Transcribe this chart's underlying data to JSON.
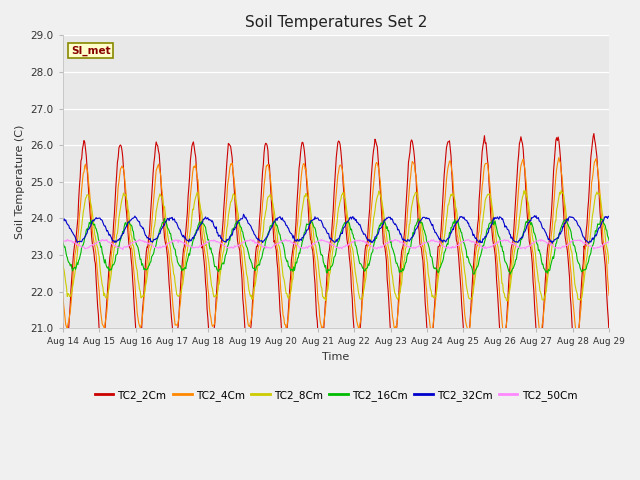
{
  "title": "Soil Temperatures Set 2",
  "xlabel": "Time",
  "ylabel": "Soil Temperature (C)",
  "ylim": [
    21.0,
    29.0
  ],
  "yticks": [
    21.0,
    22.0,
    23.0,
    24.0,
    25.0,
    26.0,
    27.0,
    28.0,
    29.0
  ],
  "xtick_labels": [
    "Aug 14",
    "Aug 15",
    "Aug 16",
    "Aug 17",
    "Aug 18",
    "Aug 19",
    "Aug 20",
    "Aug 21",
    "Aug 22",
    "Aug 23",
    "Aug 24",
    "Aug 25",
    "Aug 26",
    "Aug 27",
    "Aug 28",
    "Aug 29"
  ],
  "fig_bg": "#f0f0f0",
  "plot_bg": "#e8e8e8",
  "grid_color": "#ffffff",
  "series_colors": {
    "TC2_2Cm": "#cc0000",
    "TC2_4Cm": "#ff8800",
    "TC2_8Cm": "#cccc00",
    "TC2_16Cm": "#00bb00",
    "TC2_32Cm": "#0000cc",
    "TC2_50Cm": "#ff88ff"
  },
  "legend_label": "SI_met",
  "n_points": 720,
  "base_temp": 23.25,
  "amp2": 2.8,
  "amp4": 2.2,
  "amp8": 1.4,
  "amp16": 0.65,
  "amp32": 0.32,
  "amp50": 0.1,
  "base32": 23.7,
  "base50": 23.3
}
